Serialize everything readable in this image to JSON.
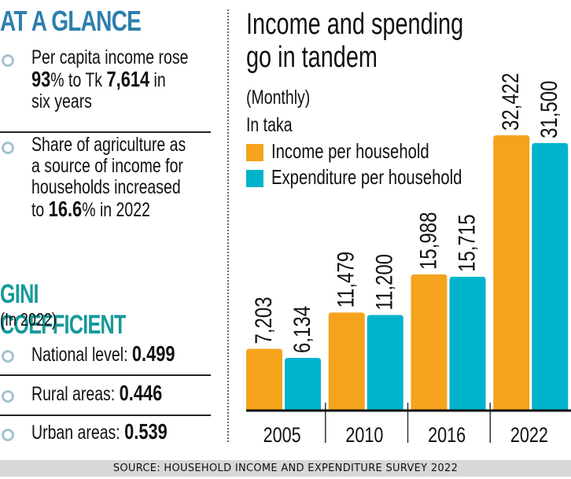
{
  "left": {
    "glance_title": "AT A GLANCE",
    "bullets": [
      {
        "lines": [
          [
            {
              "t": "Per capita income rose",
              "b": false
            }
          ],
          [
            {
              "t": "93",
              "b": true
            },
            {
              "t": "% to Tk ",
              "b": false
            },
            {
              "t": "7,614",
              "b": true
            },
            {
              "t": " in",
              "b": false
            }
          ],
          [
            {
              "t": "six years",
              "b": false
            }
          ]
        ]
      },
      {
        "lines": [
          [
            {
              "t": "Share of agriculture as",
              "b": false
            }
          ],
          [
            {
              "t": "a source of income for",
              "b": false
            }
          ],
          [
            {
              "t": "households increased",
              "b": false
            }
          ],
          [
            {
              "t": "to ",
              "b": false
            },
            {
              "t": "16.6",
              "b": true
            },
            {
              "t": "% in 2022",
              "b": false
            }
          ]
        ]
      }
    ],
    "gini_title": "GINI COEFFICIENT",
    "gini_subtitle": "(In 2022)",
    "gini_items": [
      {
        "label": "National level: ",
        "value": "0.499"
      },
      {
        "label": "Rural areas: ",
        "value": "0.446"
      },
      {
        "label": "Urban areas: ",
        "value": "0.539"
      }
    ],
    "bullet_color": "#a6c3d0",
    "glance_color": "#2e7fad",
    "gini_color": "#17999a"
  },
  "source": "SOURCE: HOUSEHOLD INCOME AND EXPENDITURE SURVEY 2022",
  "chart_data": {
    "type": "bar",
    "title": "Income and spending go in tandem",
    "title_lines": [
      "Income and spending",
      "go in tandem"
    ],
    "subtitle": "(Monthly)",
    "unit_label": "In taka",
    "xlabel": "",
    "ylabel": "",
    "ylim": [
      0,
      32422
    ],
    "grid": false,
    "legend_position": "top-left",
    "categories": [
      "2005",
      "2010",
      "2016",
      "2022"
    ],
    "series": [
      {
        "name": "Income per household",
        "color": "#f5a31c",
        "values": [
          7203,
          11479,
          15988,
          32422
        ],
        "labels": [
          "7,203",
          "11,479",
          "15,988",
          "32,422"
        ]
      },
      {
        "name": "Expenditure per household",
        "color": "#00b3cc",
        "values": [
          6134,
          11200,
          15715,
          31500
        ],
        "labels": [
          "6,134",
          "11,200",
          "15,715",
          "31,500"
        ]
      }
    ]
  }
}
